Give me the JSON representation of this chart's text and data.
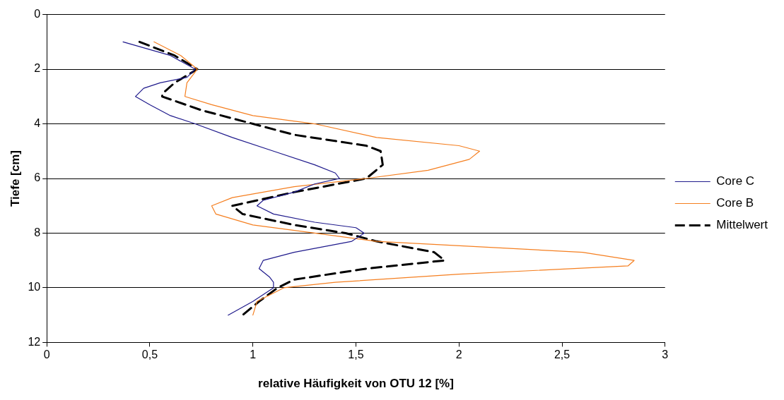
{
  "chart_data": {
    "type": "line",
    "orientation": "horizontal",
    "xlabel": "relative Häufigkeit von OTU 12 [%]",
    "ylabel": "Tiefe [cm]",
    "xlim": [
      0,
      3
    ],
    "xticks": [
      0,
      {
        "value": 0.5,
        "label": "0,5"
      },
      1,
      {
        "value": 1.5,
        "label": "1,5"
      },
      2,
      {
        "value": 2.5,
        "label": "2,5"
      },
      3
    ],
    "ylim": [
      12,
      0
    ],
    "yticks": [
      0,
      2,
      4,
      6,
      8,
      10,
      12
    ],
    "grid": "y",
    "legend": "right",
    "marker": "none",
    "series": [
      {
        "name": "Core C",
        "color": "#1f1a8c",
        "line_style": "solid",
        "values": [
          0.37,
          0.6,
          0.72,
          0.68,
          0.55,
          0.47,
          0.43,
          0.5,
          0.6,
          0.72,
          0.9,
          1.1,
          1.3,
          1.4,
          1.42,
          1.3,
          1.2,
          1.05,
          1.02,
          1.1,
          1.3,
          1.5,
          1.54,
          1.48,
          1.2,
          1.05,
          1.03,
          1.08,
          1.1,
          1.1,
          1.0,
          0.88
        ],
        "x": [
          1,
          1.5,
          2,
          2.3,
          2.5,
          2.7,
          3,
          3.3,
          3.7,
          4,
          4.5,
          5,
          5.5,
          5.8,
          6,
          6.2,
          6.5,
          6.8,
          7,
          7.3,
          7.6,
          7.8,
          8,
          8.3,
          8.7,
          9,
          9.3,
          9.6,
          9.8,
          10,
          10.5,
          11
        ]
      },
      {
        "name": "Core B",
        "color": "#f57f20",
        "line_style": "solid",
        "values": [
          0.52,
          0.65,
          0.73,
          0.68,
          0.67,
          0.8,
          1.0,
          1.3,
          1.6,
          2.0,
          2.1,
          2.05,
          1.85,
          1.55,
          1.2,
          0.9,
          0.8,
          0.82,
          1.0,
          1.3,
          1.6,
          2.6,
          2.85,
          2.82,
          2.0,
          1.4,
          1.15,
          1.02,
          1.0
        ],
        "x": [
          1,
          1.5,
          2,
          2.5,
          3,
          3.3,
          3.7,
          4,
          4.5,
          4.8,
          5,
          5.3,
          5.7,
          6,
          6.3,
          6.7,
          7,
          7.3,
          7.7,
          8,
          8.3,
          8.7,
          9,
          9.2,
          9.5,
          9.8,
          10,
          10.5,
          11
        ]
      },
      {
        "name": "Mittelwert",
        "color": "#000000",
        "line_style": "dashed",
        "values": [
          0.45,
          0.62,
          0.73,
          0.62,
          0.56,
          0.56,
          0.75,
          1.0,
          1.2,
          1.55,
          1.62,
          1.63,
          1.55,
          1.2,
          0.9,
          0.95,
          1.2,
          1.45,
          1.6,
          1.88,
          1.93,
          1.55,
          1.2,
          1.12,
          1.03,
          0.95
        ],
        "x": [
          1,
          1.5,
          2,
          2.5,
          2.9,
          3,
          3.5,
          4,
          4.4,
          4.8,
          5,
          5.5,
          6,
          6.5,
          7,
          7.3,
          7.7,
          8,
          8.3,
          8.7,
          9,
          9.3,
          9.7,
          10,
          10.5,
          11
        ]
      }
    ]
  }
}
